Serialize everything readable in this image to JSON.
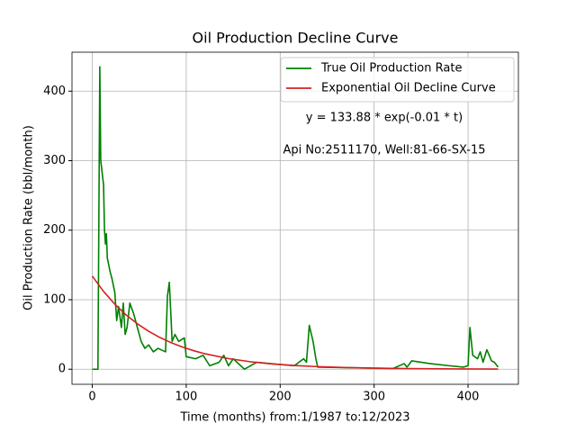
{
  "chart_data": {
    "type": "line",
    "title": "Oil Production Decline Curve",
    "xlabel": "Time (months) from:1/1987 to:12/2023",
    "ylabel": "Oil Production Rate (bbl/month)",
    "annotations": [
      "y = 133.88 * exp(-0.01 * t)",
      "Api No:2511170, Well:81-66-SX-15"
    ],
    "series": [
      {
        "name": "True Oil Production Rate",
        "color": "#008000",
        "x": [
          0,
          6,
          8,
          9,
          12,
          13,
          14,
          15,
          16,
          19,
          21,
          24,
          26,
          28,
          31,
          33,
          35,
          37,
          40,
          44,
          48,
          52,
          56,
          60,
          65,
          70,
          78,
          80,
          82,
          85,
          88,
          92,
          98,
          100,
          110,
          118,
          125,
          135,
          140,
          145,
          150,
          162,
          175,
          190,
          215,
          225,
          228,
          231,
          235,
          238,
          240,
          280,
          320,
          332,
          335,
          340,
          360,
          380,
          395,
          400,
          402,
          405,
          410,
          413,
          416,
          420,
          425,
          428,
          432
        ],
        "values": [
          0,
          0,
          435,
          300,
          265,
          200,
          180,
          195,
          160,
          140,
          130,
          110,
          70,
          90,
          60,
          95,
          50,
          60,
          95,
          80,
          60,
          40,
          30,
          35,
          25,
          30,
          25,
          105,
          125,
          40,
          50,
          40,
          45,
          18,
          15,
          20,
          5,
          10,
          20,
          5,
          15,
          0,
          10,
          8,
          5,
          15,
          10,
          63,
          40,
          15,
          3,
          2,
          1,
          8,
          3,
          12,
          8,
          5,
          3,
          5,
          60,
          20,
          15,
          25,
          10,
          28,
          12,
          10,
          3
        ]
      },
      {
        "name": "Exponential Oil Decline Curve",
        "color": "#d62020",
        "x": [
          0,
          12,
          24,
          36,
          48,
          60,
          72,
          84,
          96,
          108,
          120,
          144,
          168,
          192,
          216,
          240,
          264,
          300,
          336,
          372,
          432
        ],
        "values": [
          133.9,
          111.9,
          93.5,
          78.1,
          65.3,
          54.6,
          45.6,
          38.1,
          31.8,
          26.6,
          22.2,
          15.5,
          10.8,
          7.5,
          5.3,
          3.7,
          2.6,
          1.5,
          0.9,
          0.5,
          0.2
        ]
      }
    ],
    "xlim": [
      -21.6,
      453.6
    ],
    "ylim": [
      -21.7,
      456
    ],
    "xticks": [
      0,
      100,
      200,
      300,
      400
    ],
    "yticks": [
      0,
      100,
      200,
      300,
      400
    ],
    "grid": true,
    "legend": "upper right"
  }
}
